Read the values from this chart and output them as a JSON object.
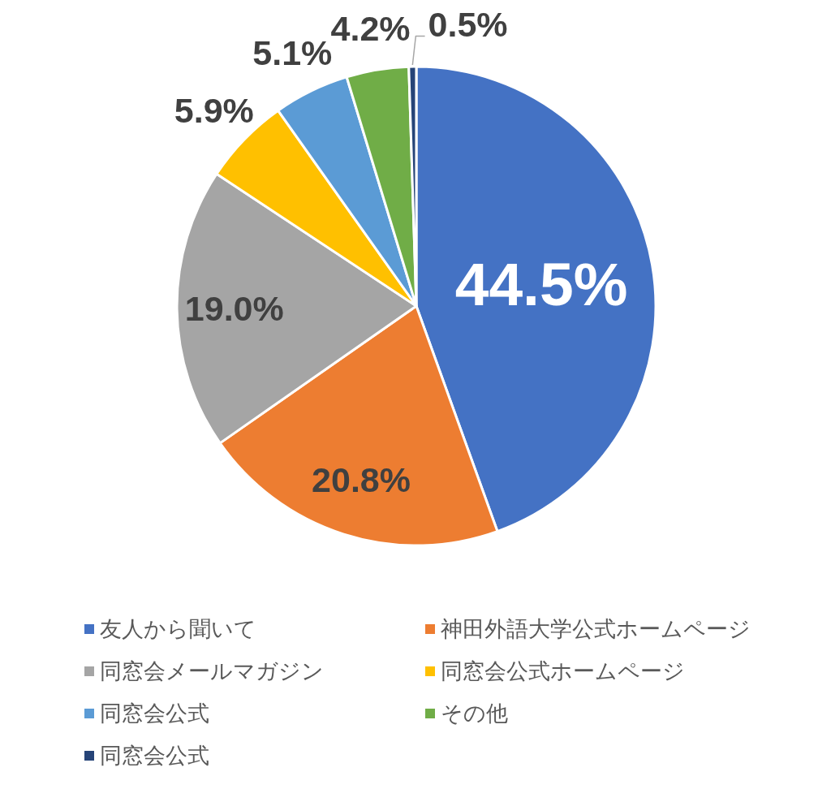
{
  "chart_data": {
    "type": "pie",
    "categories": [
      "友人から聞いて",
      "神田外語大学公式ホームページ",
      "同窓会メールマガジン",
      "同窓会公式ホームページ",
      "同窓会公式",
      "その他",
      "同窓会公式"
    ],
    "values": [
      44.5,
      20.8,
      19.0,
      5.9,
      5.1,
      4.2,
      0.5
    ],
    "colors": [
      "#4472c4",
      "#ed7d31",
      "#a5a5a5",
      "#ffc000",
      "#5b9bd5",
      "#70ad47",
      "#264478"
    ],
    "value_labels": [
      "44.5%",
      "20.8%",
      "19.0%",
      "5.9%",
      "5.1%",
      "4.2%",
      "0.5%"
    ],
    "legend": "bottom"
  }
}
